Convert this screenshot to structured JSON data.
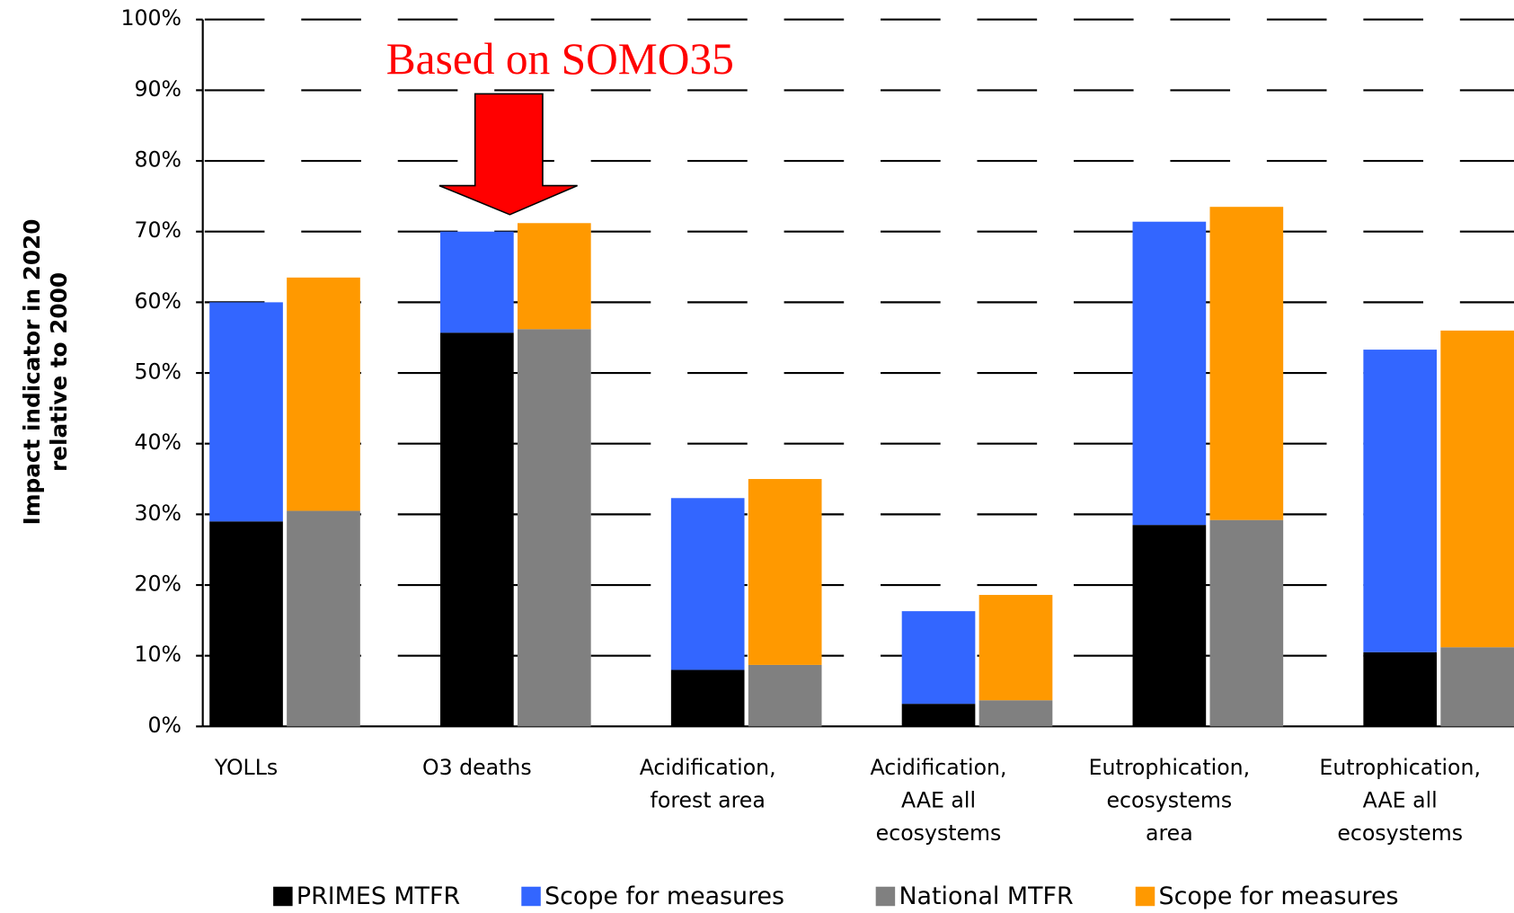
{
  "chart_data": {
    "type": "stacked-bar",
    "y_label": "Impact indicator in 2020\nrelative to 2000",
    "annotation": "Based on SOMO35",
    "categories": [
      "YOLLs",
      "O3 deaths",
      "Acidification,\nforest area",
      "Acidification,\nAAE all\necosystems",
      "Eutrophication,\necosystems\narea",
      "Eutrophication,\nAAE all\necosystems"
    ],
    "series": [
      {
        "name": "PRIMES MTFR",
        "color": "#000000",
        "stack": 0,
        "values": [
          29,
          55.7,
          8,
          3.2,
          28.5,
          10.5
        ]
      },
      {
        "name": "Scope for measures",
        "color": "#3366ff",
        "stack": 0,
        "values": [
          31,
          14.3,
          24.3,
          13.1,
          42.9,
          42.8
        ]
      },
      {
        "name": "National MTFR",
        "color": "#808080",
        "stack": 1,
        "values": [
          30.5,
          56.2,
          8.7,
          3.7,
          29.2,
          11.2
        ]
      },
      {
        "name": "Scope for measures",
        "color": "#ff9900",
        "stack": 1,
        "values": [
          33,
          15,
          26.3,
          14.9,
          44.3,
          44.8
        ]
      }
    ],
    "ylim": [
      0,
      100
    ],
    "yticks": [
      {
        "value": 0,
        "label": "0%"
      },
      {
        "value": 10,
        "label": "10%"
      },
      {
        "value": 20,
        "label": "20%"
      },
      {
        "value": 30,
        "label": "30%"
      },
      {
        "value": 40,
        "label": "40%"
      },
      {
        "value": 50,
        "label": "50%"
      },
      {
        "value": 60,
        "label": "60%"
      },
      {
        "value": 70,
        "label": "70%"
      },
      {
        "value": 80,
        "label": "80%"
      },
      {
        "value": 90,
        "label": "90%"
      },
      {
        "value": 100,
        "label": "100%"
      }
    ],
    "grid": true,
    "legend": "bottom"
  }
}
